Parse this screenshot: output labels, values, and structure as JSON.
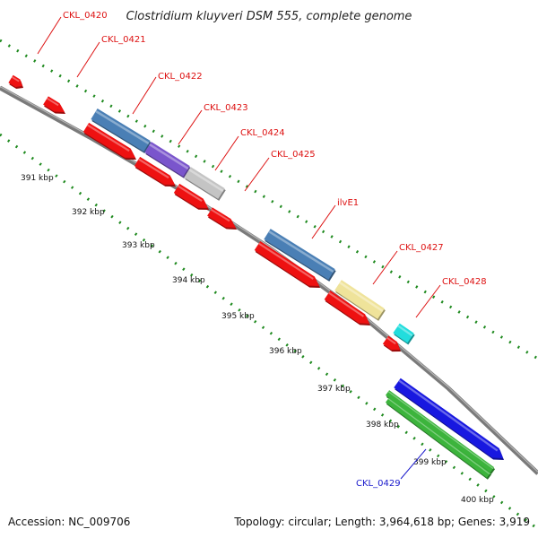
{
  "title": "Clostridium kluyveri DSM 555, complete genome",
  "footer": {
    "accession": "Accession: NC_009706",
    "topology": "Topology: circular; Length: 3,964,618 bp; Genes: 3,919"
  },
  "colors": {
    "backbone": "#8c8c8c",
    "dots": "#1f8a1f",
    "label_red": "#dd1111",
    "label_blue": "#1a1acc",
    "red": "#ee1111",
    "steel_blue": "#4a7fb5",
    "purple": "#7a55cc",
    "light_gray": "#c4c4c4",
    "light_yellow": "#efe39a",
    "cyan": "#22dddd",
    "blue": "#1818e0",
    "green": "#3cb43c"
  },
  "scale_ticks": [
    "391 kbp",
    "392 kbp",
    "393 kbp",
    "394 kbp",
    "395 kbp",
    "396 kbp",
    "397 kbp",
    "398 kbp",
    "399 kbp",
    "400 kbp"
  ],
  "gene_labels": [
    {
      "text": "CKL_0420",
      "color": "red"
    },
    {
      "text": "CKL_0421",
      "color": "red"
    },
    {
      "text": "CKL_0422",
      "color": "red"
    },
    {
      "text": "CKL_0423",
      "color": "red"
    },
    {
      "text": "CKL_0424",
      "color": "red"
    },
    {
      "text": "CKL_0425",
      "color": "red"
    },
    {
      "text": "ilvE1",
      "color": "red"
    },
    {
      "text": "CKL_0427",
      "color": "red"
    },
    {
      "text": "CKL_0428",
      "color": "red"
    },
    {
      "text": "CKL_0429",
      "color": "blue"
    }
  ]
}
